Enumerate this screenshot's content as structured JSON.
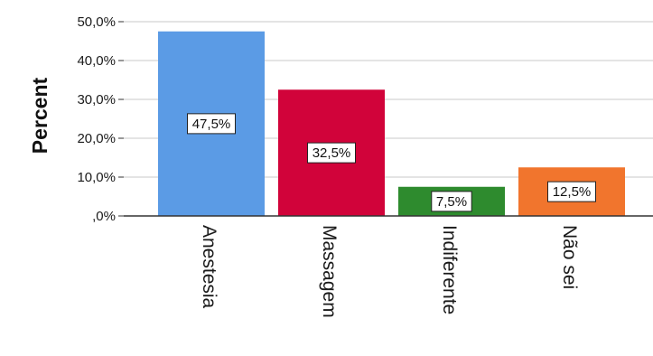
{
  "chart_data": {
    "type": "bar",
    "title": "",
    "xlabel": "",
    "ylabel": "Percent",
    "ylim": [
      0,
      50
    ],
    "yticks": [
      0,
      10,
      20,
      30,
      40,
      50
    ],
    "ytick_labels": [
      ",0%",
      "10,0%",
      "20,0%",
      "30,0%",
      "40,0%",
      "50,0%"
    ],
    "categories": [
      "Anestesia",
      "Massagem",
      "Indiferente",
      "Não sei"
    ],
    "values": [
      47.5,
      32.5,
      7.5,
      12.5
    ],
    "data_labels": [
      "47,5%",
      "32,5%",
      "7,5%",
      "12,5%"
    ],
    "colors": [
      "#5b9be5",
      "#d1033a",
      "#2e8b2e",
      "#f1752d"
    ],
    "grid": true,
    "legend": "none"
  }
}
